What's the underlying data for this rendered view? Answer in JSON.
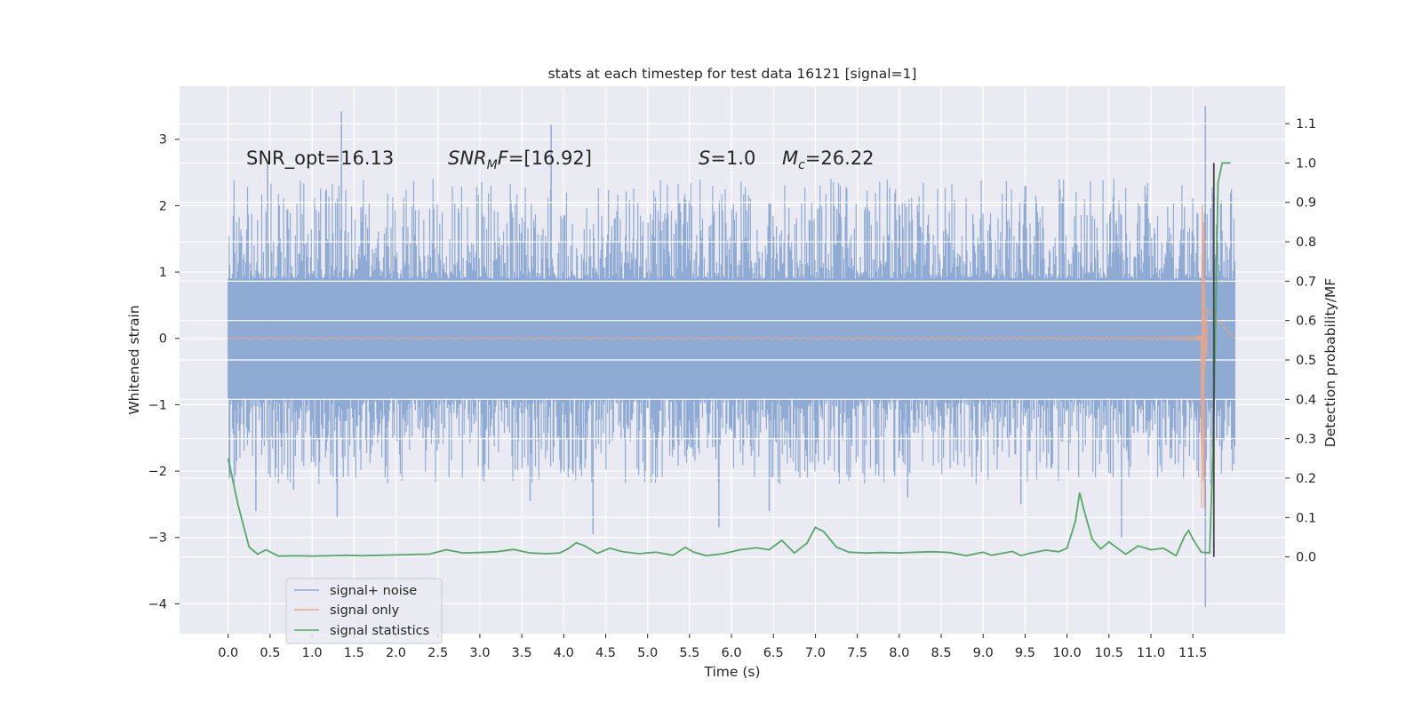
{
  "chart_data": {
    "type": "line",
    "title": "stats at each timestep for test data 16121 [signal=1]",
    "xlabel": "Time (s)",
    "ylabel": "Whitened strain",
    "y2label": "Detection probability/MF",
    "xlim": [
      -0.58,
      12.6
    ],
    "ylim": [
      -4.45,
      3.8
    ],
    "y2lim": [
      -0.195,
      1.195
    ],
    "grid": true,
    "x_ticks": [
      0.0,
      0.5,
      1.0,
      1.5,
      2.0,
      2.5,
      3.0,
      3.5,
      4.0,
      4.5,
      5.0,
      5.5,
      6.0,
      6.5,
      7.0,
      7.5,
      8.0,
      8.5,
      9.0,
      9.5,
      10.0,
      10.5,
      11.0,
      11.5
    ],
    "x_tick_labels": [
      "0.0",
      "0.5",
      "1.0",
      "1.5",
      "2.0",
      "2.5",
      "3.0",
      "3.5",
      "4.0",
      "4.5",
      "5.0",
      "5.5",
      "6.0",
      "6.5",
      "7.0",
      "7.5",
      "8.0",
      "8.5",
      "9.0",
      "9.5",
      "10.0",
      "10.5",
      "11.0",
      "11.5"
    ],
    "y_ticks": [
      3,
      2,
      1,
      0,
      -1,
      -2,
      -3,
      -4
    ],
    "y_tick_labels": [
      "3",
      "2",
      "1",
      "0",
      "−1",
      "−2",
      "−3",
      "−4"
    ],
    "y2_ticks": [
      1.1,
      1.0,
      0.9,
      0.8,
      0.7,
      0.6,
      0.5,
      0.4,
      0.3,
      0.2,
      0.1,
      0.0
    ],
    "y2_tick_labels": [
      "1.1",
      "1.0",
      "0.9",
      "0.8",
      "0.7",
      "0.6",
      "0.5",
      "0.4",
      "0.3",
      "0.2",
      "0.1",
      "0.0"
    ],
    "annotations": {
      "snr_opt": "SNR_opt=16.13",
      "snr_mf": "=[16.92]",
      "s": "=1.0",
      "mc": "=26.22"
    },
    "series": [
      {
        "name": "signal+ noise",
        "axis": "left",
        "color": "#8faad3",
        "description_x_range": [
          0.0,
          12.0
        ],
        "band_low": -1.0,
        "band_high": 1.0,
        "spikes": [
          {
            "x": 0.47,
            "y": 2.65
          },
          {
            "x": 1.35,
            "y": 3.42
          },
          {
            "x": 1.3,
            "y": -2.7
          },
          {
            "x": 3.85,
            "y": 3.22
          },
          {
            "x": 4.35,
            "y": -2.95
          },
          {
            "x": 5.85,
            "y": -2.85
          },
          {
            "x": 0.33,
            "y": -2.6
          },
          {
            "x": 0.78,
            "y": -2.28
          },
          {
            "x": 3.6,
            "y": -2.45
          },
          {
            "x": 10.65,
            "y": -3.0
          },
          {
            "x": 11.65,
            "y": 3.5
          },
          {
            "x": 11.65,
            "y": -4.05
          },
          {
            "x": 9.45,
            "y": -2.5
          },
          {
            "x": 8.1,
            "y": -2.4
          },
          {
            "x": 6.45,
            "y": -2.6
          }
        ]
      },
      {
        "name": "signal only",
        "axis": "left",
        "color": "#e8a68a",
        "peak_x": 11.65,
        "peak_amplitude": 2.65
      },
      {
        "name": "signal statistics",
        "axis": "right",
        "color": "#55a868",
        "x": [
          0.0,
          0.12,
          0.25,
          0.35,
          0.45,
          0.6,
          0.8,
          1.0,
          1.2,
          1.4,
          1.6,
          1.8,
          2.0,
          2.2,
          2.4,
          2.6,
          2.8,
          3.0,
          3.2,
          3.4,
          3.6,
          3.8,
          3.95,
          4.05,
          4.15,
          4.25,
          4.4,
          4.55,
          4.7,
          4.9,
          5.1,
          5.3,
          5.45,
          5.55,
          5.7,
          5.9,
          6.1,
          6.3,
          6.45,
          6.6,
          6.75,
          6.9,
          7.0,
          7.1,
          7.25,
          7.4,
          7.6,
          7.8,
          8.0,
          8.2,
          8.4,
          8.6,
          8.8,
          9.0,
          9.1,
          9.2,
          9.35,
          9.45,
          9.55,
          9.75,
          9.9,
          10.0,
          10.1,
          10.15,
          10.2,
          10.3,
          10.4,
          10.5,
          10.6,
          10.7,
          10.85,
          11.0,
          11.15,
          11.3,
          11.4,
          11.45,
          11.5,
          11.6,
          11.7,
          11.75,
          11.8,
          11.85,
          11.95
        ],
        "y": [
          0.25,
          0.13,
          0.025,
          0.007,
          0.018,
          0.002,
          0.003,
          0.002,
          0.003,
          0.004,
          0.003,
          0.004,
          0.005,
          0.006,
          0.007,
          0.018,
          0.01,
          0.011,
          0.013,
          0.019,
          0.01,
          0.008,
          0.01,
          0.02,
          0.036,
          0.028,
          0.009,
          0.022,
          0.013,
          0.008,
          0.012,
          0.004,
          0.024,
          0.012,
          0.003,
          0.008,
          0.018,
          0.023,
          0.018,
          0.042,
          0.01,
          0.035,
          0.075,
          0.064,
          0.025,
          0.012,
          0.01,
          0.011,
          0.01,
          0.012,
          0.013,
          0.011,
          0.003,
          0.012,
          0.004,
          0.008,
          0.014,
          0.003,
          0.009,
          0.017,
          0.013,
          0.022,
          0.09,
          0.163,
          0.12,
          0.045,
          0.02,
          0.038,
          0.022,
          0.007,
          0.028,
          0.018,
          0.022,
          0.003,
          0.052,
          0.067,
          0.045,
          0.012,
          0.01,
          0.35,
          0.95,
          1.0,
          1.0
        ]
      }
    ],
    "vertical_line": {
      "x": 11.75,
      "y": [
        0.0,
        1.0
      ],
      "axis": "right",
      "color": "#444444"
    },
    "legend": {
      "placement": "lower-left",
      "entries": [
        {
          "label": "signal+ noise",
          "color": "#8faad3"
        },
        {
          "label": "signal only",
          "color": "#e8a68a"
        },
        {
          "label": "signal statistics",
          "color": "#55a868"
        }
      ]
    }
  }
}
